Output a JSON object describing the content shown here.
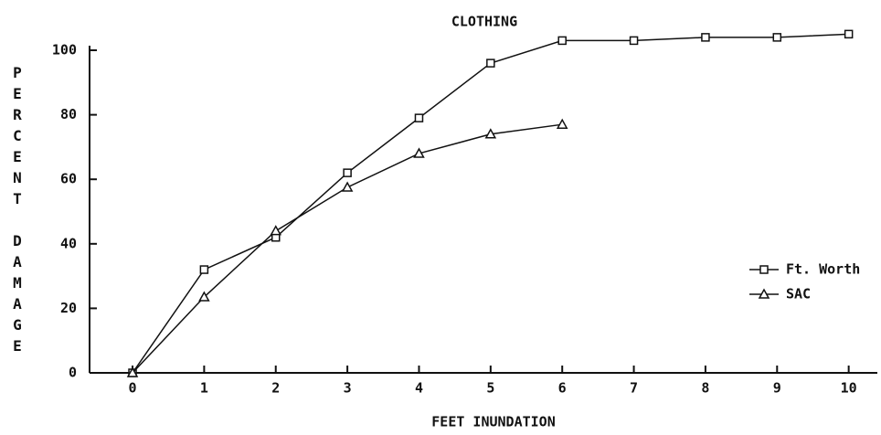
{
  "chart_data": {
    "type": "line",
    "title": "CLOTHING",
    "x_label": "FEET INUNDATION",
    "y_label": "PERCENT DAMAGE",
    "x": [
      0,
      1,
      2,
      3,
      4,
      5,
      6,
      7,
      8,
      9,
      10
    ],
    "series": [
      {
        "name": "Ft. Worth",
        "color": "#111111",
        "marker": "square",
        "values": [
          0,
          32,
          42,
          62,
          79,
          96,
          103,
          103,
          104,
          104,
          105
        ]
      },
      {
        "name": "SAC",
        "color": "#111111",
        "marker": "triangle",
        "values": [
          0,
          23.5,
          44,
          57.5,
          68,
          74,
          77,
          null,
          null,
          null,
          null
        ]
      }
    ],
    "xlim": [
      -0.6,
      10.4
    ],
    "xticks": [
      0,
      1,
      2,
      3,
      4,
      5,
      6,
      7,
      8,
      9,
      10
    ],
    "ylim": [
      0,
      100
    ],
    "yticks": [
      0,
      20,
      40,
      60,
      80,
      100
    ],
    "grid": false,
    "legend": "right"
  }
}
